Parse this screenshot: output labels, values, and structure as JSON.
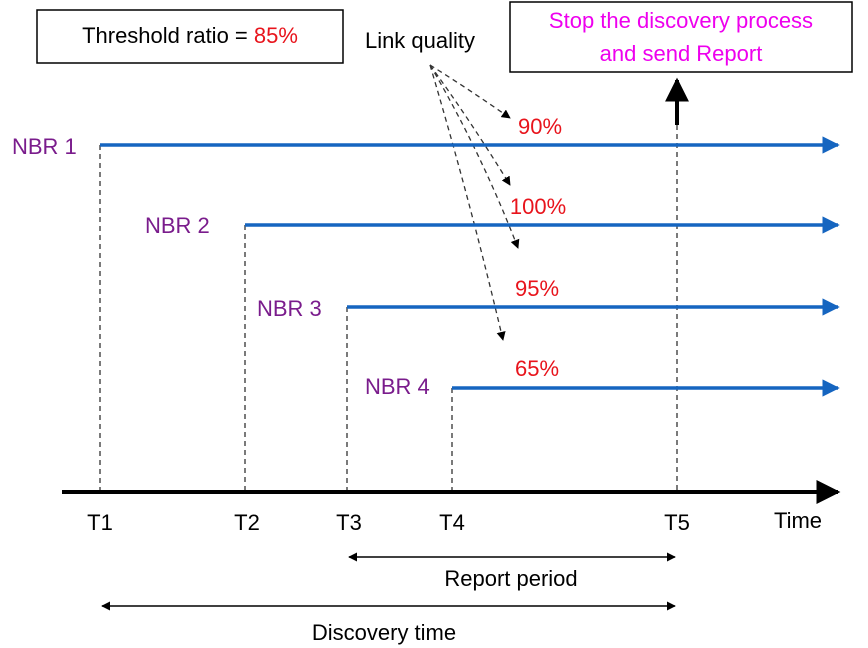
{
  "threshold": {
    "label": "Threshold ratio = ",
    "value": "85%"
  },
  "link_quality": "Link quality",
  "stop_note": {
    "line1": "Stop the discovery process",
    "line2": "and send Report"
  },
  "neighbors": [
    {
      "label": "NBR 1",
      "quality": "90%"
    },
    {
      "label": "NBR 2",
      "quality": "100%"
    },
    {
      "label": "NBR 3",
      "quality": "95%"
    },
    {
      "label": "NBR 4",
      "quality": "65%"
    }
  ],
  "times": [
    "T1",
    "T2",
    "T3",
    "T4",
    "T5"
  ],
  "axis_label": "Time",
  "report_period": "Report period",
  "discovery_time": "Discovery time"
}
